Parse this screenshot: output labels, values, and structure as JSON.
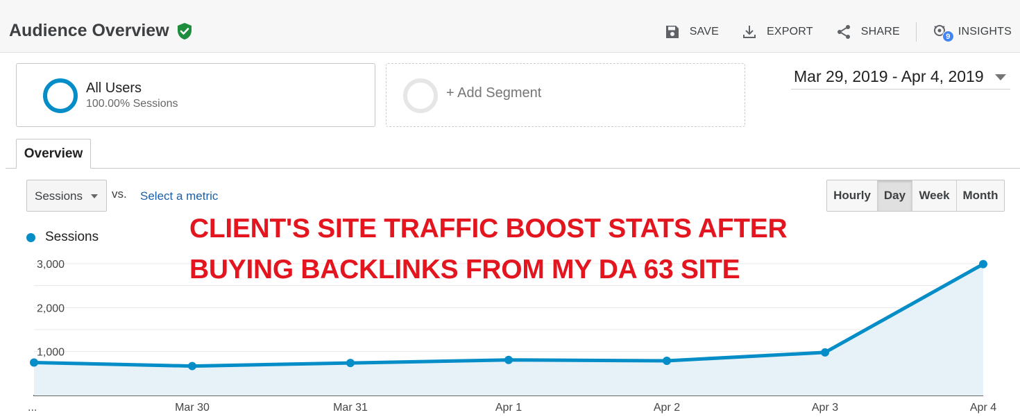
{
  "header": {
    "title": "Audience Overview",
    "save_label": "SAVE",
    "export_label": "EXPORT",
    "share_label": "SHARE",
    "insights_label": "INSIGHTS",
    "insights_badge": "9"
  },
  "segments": {
    "all_users_name": "All Users",
    "all_users_pct": "100.00% Sessions",
    "add_label": "+ Add Segment",
    "ring_color": "#058dc7"
  },
  "date_range": "Mar 29, 2019 - Apr 4, 2019",
  "tabs": {
    "overview": "Overview"
  },
  "metric": {
    "selected": "Sessions",
    "vs": "vs.",
    "select_metric": "Select a metric"
  },
  "granularity": {
    "options": [
      "Hourly",
      "Day",
      "Week",
      "Month"
    ],
    "active": "Day"
  },
  "legend": {
    "series": "Sessions",
    "color": "#058dc7"
  },
  "overlay": {
    "line1": "CLIENT'S SITE TRAFFIC BOOST STATS AFTER",
    "line2": "BUYING BACKLINKS FROM MY DA 63 SITE",
    "color": "#e3161f"
  },
  "chart_data": {
    "type": "area",
    "categories": [
      "...",
      "Mar 30",
      "Mar 31",
      "Apr 1",
      "Apr 2",
      "Apr 3",
      "Apr 4"
    ],
    "series": [
      {
        "name": "Sessions",
        "values": [
          750,
          670,
          740,
          810,
          790,
          980,
          2990
        ]
      }
    ],
    "yticks": [
      "1,000",
      "2,000",
      "3,000"
    ],
    "ylim": [
      0,
      3000
    ],
    "grid": true,
    "line_color": "#058dc7",
    "fill_color": "#e6f2f8"
  }
}
